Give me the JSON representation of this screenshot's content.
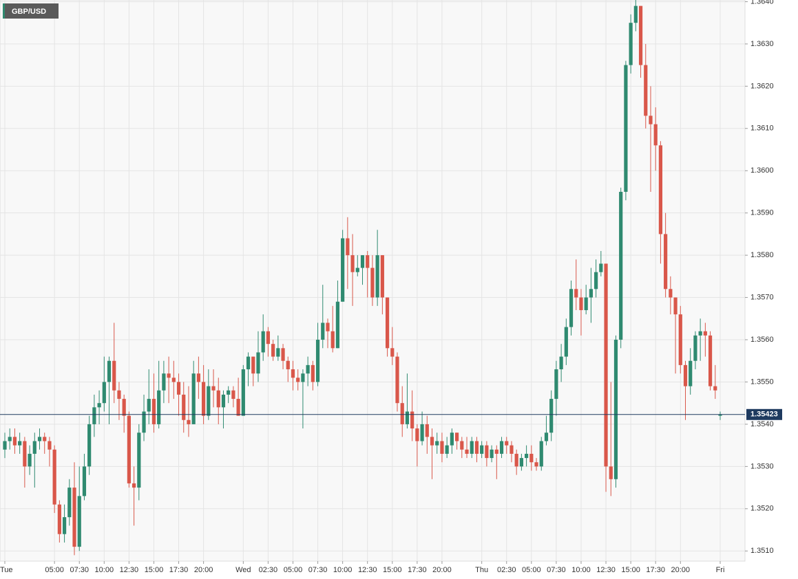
{
  "chart_data": {
    "type": "candlestick",
    "title": "GBP/USD",
    "last_price": 1.35423,
    "up_color": "#2f8a70",
    "down_color": "#d9574a",
    "ylim": [
      1.35076,
      1.36404
    ],
    "yticks": [
      {
        "value": 1.351,
        "label": "1.3510"
      },
      {
        "value": 1.352,
        "label": "1.3520"
      },
      {
        "value": 1.353,
        "label": "1.3530"
      },
      {
        "value": 1.354,
        "label": "1.3540"
      },
      {
        "value": 1.355,
        "label": "1.3550"
      },
      {
        "value": 1.356,
        "label": "1.3560"
      },
      {
        "value": 1.357,
        "label": "1.3570"
      },
      {
        "value": 1.358,
        "label": "1.3580"
      },
      {
        "value": 1.359,
        "label": "1.3590"
      },
      {
        "value": 1.36,
        "label": "1.3600"
      },
      {
        "value": 1.361,
        "label": "1.3610"
      },
      {
        "value": 1.362,
        "label": "1.3620"
      },
      {
        "value": 1.363,
        "label": "1.3630"
      },
      {
        "value": 1.364,
        "label": "1.3640"
      }
    ],
    "xticks": [
      {
        "value": 0,
        "label": "Tue"
      },
      {
        "value": 10,
        "label": "05:00"
      },
      {
        "value": 15,
        "label": "07:30"
      },
      {
        "value": 20,
        "label": "10:00"
      },
      {
        "value": 25,
        "label": "12:30"
      },
      {
        "value": 30,
        "label": "15:00"
      },
      {
        "value": 35,
        "label": "17:30"
      },
      {
        "value": 40,
        "label": "20:00"
      },
      {
        "value": 48,
        "label": "Wed"
      },
      {
        "value": 53,
        "label": "02:30"
      },
      {
        "value": 58,
        "label": "05:00"
      },
      {
        "value": 63,
        "label": "07:30"
      },
      {
        "value": 68,
        "label": "10:00"
      },
      {
        "value": 73,
        "label": "12:30"
      },
      {
        "value": 78,
        "label": "15:00"
      },
      {
        "value": 83,
        "label": "17:30"
      },
      {
        "value": 88,
        "label": "20:00"
      },
      {
        "value": 96,
        "label": "Thu"
      },
      {
        "value": 101,
        "label": "02:30"
      },
      {
        "value": 106,
        "label": "05:00"
      },
      {
        "value": 111,
        "label": "07:30"
      },
      {
        "value": 116,
        "label": "10:00"
      },
      {
        "value": 121,
        "label": "12:30"
      },
      {
        "value": 126,
        "label": "15:00"
      },
      {
        "value": 131,
        "label": "17:30"
      },
      {
        "value": 136,
        "label": "20:00"
      },
      {
        "value": 144,
        "label": "Fri"
      }
    ],
    "xlim": [
      0,
      144
    ],
    "candles": [
      [
        1.3534,
        1.3538,
        1.3532,
        1.3536
      ],
      [
        1.3536,
        1.3539,
        1.3534,
        1.3537
      ],
      [
        1.3537,
        1.3539,
        1.3533,
        1.3535
      ],
      [
        1.3535,
        1.3538,
        1.3533,
        1.3536
      ],
      [
        1.3536,
        1.3537,
        1.3525,
        1.353
      ],
      [
        1.353,
        1.3535,
        1.3528,
        1.3533
      ],
      [
        1.3533,
        1.3538,
        1.3525,
        1.3536
      ],
      [
        1.3536,
        1.3539,
        1.3534,
        1.3537
      ],
      [
        1.3537,
        1.3538,
        1.3533,
        1.3536
      ],
      [
        1.3536,
        1.3537,
        1.353,
        1.3534
      ],
      [
        1.3534,
        1.3535,
        1.3519,
        1.3521
      ],
      [
        1.3521,
        1.3522,
        1.3512,
        1.3514
      ],
      [
        1.3514,
        1.3521,
        1.3512,
        1.3518
      ],
      [
        1.3518,
        1.3527,
        1.3516,
        1.3525
      ],
      [
        1.3525,
        1.3531,
        1.3509,
        1.3511
      ],
      [
        1.3511,
        1.353,
        1.351,
        1.3523
      ],
      [
        1.3523,
        1.3533,
        1.3522,
        1.353
      ],
      [
        1.353,
        1.3542,
        1.3528,
        1.354
      ],
      [
        1.354,
        1.3547,
        1.3537,
        1.3544
      ],
      [
        1.3544,
        1.3548,
        1.354,
        1.3545
      ],
      [
        1.3545,
        1.3556,
        1.3543,
        1.355
      ],
      [
        1.355,
        1.3556,
        1.354,
        1.3555
      ],
      [
        1.3555,
        1.3564,
        1.3545,
        1.3548
      ],
      [
        1.3548,
        1.355,
        1.3541,
        1.3546
      ],
      [
        1.3546,
        1.3547,
        1.3538,
        1.3542
      ],
      [
        1.3542,
        1.3543,
        1.3525,
        1.3526
      ],
      [
        1.3526,
        1.353,
        1.3516,
        1.3525
      ],
      [
        1.3525,
        1.354,
        1.3522,
        1.3538
      ],
      [
        1.3538,
        1.3547,
        1.3536,
        1.3543
      ],
      [
        1.3543,
        1.3553,
        1.354,
        1.3546
      ],
      [
        1.3546,
        1.3552,
        1.3538,
        1.354
      ],
      [
        1.354,
        1.3555,
        1.3539,
        1.3548
      ],
      [
        1.3548,
        1.3555,
        1.3545,
        1.3552
      ],
      [
        1.3552,
        1.3556,
        1.3545,
        1.3551
      ],
      [
        1.3551,
        1.3555,
        1.3546,
        1.355
      ],
      [
        1.355,
        1.3552,
        1.3542,
        1.3547
      ],
      [
        1.3547,
        1.355,
        1.3538,
        1.3541
      ],
      [
        1.3541,
        1.3549,
        1.3537,
        1.354
      ],
      [
        1.354,
        1.3555,
        1.354,
        1.3552
      ],
      [
        1.3552,
        1.3556,
        1.3546,
        1.355
      ],
      [
        1.355,
        1.3554,
        1.354,
        1.3542
      ],
      [
        1.3542,
        1.3553,
        1.3541,
        1.3549
      ],
      [
        1.3549,
        1.3553,
        1.3544,
        1.3548
      ],
      [
        1.3548,
        1.3551,
        1.354,
        1.3544
      ],
      [
        1.3544,
        1.3548,
        1.3539,
        1.3547
      ],
      [
        1.3547,
        1.3549,
        1.3545,
        1.3548
      ],
      [
        1.3548,
        1.3549,
        1.3544,
        1.3546
      ],
      [
        1.3546,
        1.3551,
        1.3542,
        1.3542
      ],
      [
        1.3542,
        1.3554,
        1.3542,
        1.3553
      ],
      [
        1.3553,
        1.3557,
        1.3549,
        1.3556
      ],
      [
        1.3556,
        1.3556,
        1.3549,
        1.3552
      ],
      [
        1.3552,
        1.3562,
        1.355,
        1.3557
      ],
      [
        1.3557,
        1.3566,
        1.3555,
        1.3562
      ],
      [
        1.3562,
        1.3563,
        1.3556,
        1.3559
      ],
      [
        1.3559,
        1.356,
        1.3555,
        1.3556
      ],
      [
        1.3556,
        1.3561,
        1.3555,
        1.3558
      ],
      [
        1.3558,
        1.3559,
        1.3553,
        1.3555
      ],
      [
        1.3555,
        1.3556,
        1.355,
        1.3553
      ],
      [
        1.3553,
        1.3555,
        1.3548,
        1.3551
      ],
      [
        1.3551,
        1.3553,
        1.3548,
        1.355
      ],
      [
        1.355,
        1.3553,
        1.3539,
        1.3552
      ],
      [
        1.3552,
        1.3556,
        1.3549,
        1.3554
      ],
      [
        1.3554,
        1.3555,
        1.3548,
        1.355
      ],
      [
        1.355,
        1.3564,
        1.3549,
        1.356
      ],
      [
        1.356,
        1.3573,
        1.3558,
        1.3564
      ],
      [
        1.3564,
        1.3565,
        1.3558,
        1.3562
      ],
      [
        1.3562,
        1.3568,
        1.3557,
        1.3558
      ],
      [
        1.3558,
        1.3574,
        1.3558,
        1.3569
      ],
      [
        1.3569,
        1.3586,
        1.3569,
        1.3584
      ],
      [
        1.3584,
        1.3589,
        1.3572,
        1.358
      ],
      [
        1.358,
        1.3585,
        1.3568,
        1.3576
      ],
      [
        1.3576,
        1.358,
        1.3575,
        1.3577
      ],
      [
        1.3577,
        1.358,
        1.3573,
        1.358
      ],
      [
        1.358,
        1.3581,
        1.357,
        1.3577
      ],
      [
        1.3577,
        1.358,
        1.3568,
        1.357
      ],
      [
        1.357,
        1.3586,
        1.3568,
        1.358
      ],
      [
        1.358,
        1.358,
        1.3566,
        1.357
      ],
      [
        1.357,
        1.357,
        1.3556,
        1.3558
      ],
      [
        1.3558,
        1.3563,
        1.3554,
        1.3556
      ],
      [
        1.3556,
        1.3557,
        1.3543,
        1.3545
      ],
      [
        1.3545,
        1.3549,
        1.3537,
        1.354
      ],
      [
        1.354,
        1.3552,
        1.3539,
        1.3543
      ],
      [
        1.3543,
        1.3548,
        1.3536,
        1.3539
      ],
      [
        1.3539,
        1.354,
        1.353,
        1.3536
      ],
      [
        1.3536,
        1.3543,
        1.3535,
        1.354
      ],
      [
        1.354,
        1.3542,
        1.3533,
        1.3537
      ],
      [
        1.3537,
        1.3539,
        1.3527,
        1.3535
      ],
      [
        1.3535,
        1.3538,
        1.3533,
        1.3536
      ],
      [
        1.3536,
        1.3538,
        1.3531,
        1.3533
      ],
      [
        1.3533,
        1.3537,
        1.3532,
        1.3535
      ],
      [
        1.3535,
        1.3539,
        1.3533,
        1.3538
      ],
      [
        1.3538,
        1.3538,
        1.3534,
        1.3536
      ],
      [
        1.3536,
        1.3537,
        1.3532,
        1.3534
      ],
      [
        1.3534,
        1.3537,
        1.3532,
        1.3533
      ],
      [
        1.3533,
        1.3537,
        1.3532,
        1.3536
      ],
      [
        1.3536,
        1.3537,
        1.3531,
        1.3533
      ],
      [
        1.3533,
        1.3536,
        1.3532,
        1.3535
      ],
      [
        1.3535,
        1.3536,
        1.353,
        1.3532
      ],
      [
        1.3532,
        1.3535,
        1.3531,
        1.3534
      ],
      [
        1.3534,
        1.3535,
        1.3527,
        1.3533
      ],
      [
        1.3533,
        1.3537,
        1.3532,
        1.3536
      ],
      [
        1.3536,
        1.3537,
        1.3533,
        1.3535
      ],
      [
        1.3535,
        1.3536,
        1.3531,
        1.3533
      ],
      [
        1.3533,
        1.3534,
        1.3528,
        1.353
      ],
      [
        1.353,
        1.3533,
        1.3529,
        1.3532
      ],
      [
        1.3532,
        1.3535,
        1.353,
        1.3533
      ],
      [
        1.3533,
        1.3535,
        1.3529,
        1.3531
      ],
      [
        1.3531,
        1.3532,
        1.3529,
        1.353
      ],
      [
        1.353,
        1.3537,
        1.3529,
        1.3536
      ],
      [
        1.3536,
        1.3542,
        1.3535,
        1.3538
      ],
      [
        1.3538,
        1.3548,
        1.3536,
        1.3546
      ],
      [
        1.3546,
        1.3555,
        1.3542,
        1.3553
      ],
      [
        1.3553,
        1.3559,
        1.355,
        1.3556
      ],
      [
        1.3556,
        1.3565,
        1.3554,
        1.3563
      ],
      [
        1.3563,
        1.3574,
        1.3561,
        1.3572
      ],
      [
        1.3572,
        1.3579,
        1.3567,
        1.357
      ],
      [
        1.357,
        1.3572,
        1.3561,
        1.3567
      ],
      [
        1.3567,
        1.3573,
        1.3566,
        1.357
      ],
      [
        1.357,
        1.3577,
        1.3564,
        1.3572
      ],
      [
        1.3572,
        1.3579,
        1.357,
        1.3576
      ],
      [
        1.3576,
        1.3581,
        1.3575,
        1.3578
      ],
      [
        1.3578,
        1.3578,
        1.3524,
        1.353
      ],
      [
        1.353,
        1.355,
        1.3523,
        1.3527
      ],
      [
        1.3527,
        1.3561,
        1.3525,
        1.356
      ],
      [
        1.356,
        1.3596,
        1.3558,
        1.3595
      ],
      [
        1.3595,
        1.3626,
        1.3593,
        1.3625
      ],
      [
        1.3625,
        1.3637,
        1.3623,
        1.3635
      ],
      [
        1.3635,
        1.3643,
        1.3633,
        1.3639
      ],
      [
        1.3639,
        1.3639,
        1.3622,
        1.3625
      ],
      [
        1.3625,
        1.363,
        1.361,
        1.3613
      ],
      [
        1.3613,
        1.362,
        1.3595,
        1.3611
      ],
      [
        1.3611,
        1.3615,
        1.36,
        1.3606
      ],
      [
        1.3606,
        1.3607,
        1.3578,
        1.3585
      ],
      [
        1.3585,
        1.359,
        1.357,
        1.3572
      ],
      [
        1.3572,
        1.3575,
        1.3566,
        1.357
      ],
      [
        1.357,
        1.357,
        1.3552,
        1.3566
      ],
      [
        1.3566,
        1.3568,
        1.3552,
        1.3554
      ],
      [
        1.3554,
        1.3555,
        1.3541,
        1.3549
      ],
      [
        1.3549,
        1.3558,
        1.3547,
        1.3555
      ],
      [
        1.3555,
        1.3562,
        1.3553,
        1.3561
      ],
      [
        1.3561,
        1.3565,
        1.3555,
        1.3562
      ],
      [
        1.3562,
        1.3564,
        1.3556,
        1.3561
      ],
      [
        1.3561,
        1.3562,
        1.3548,
        1.3549
      ],
      [
        1.3549,
        1.3554,
        1.3546,
        1.3548
      ],
      [
        1.3542,
        1.3543,
        1.3541,
        1.35423
      ]
    ]
  }
}
